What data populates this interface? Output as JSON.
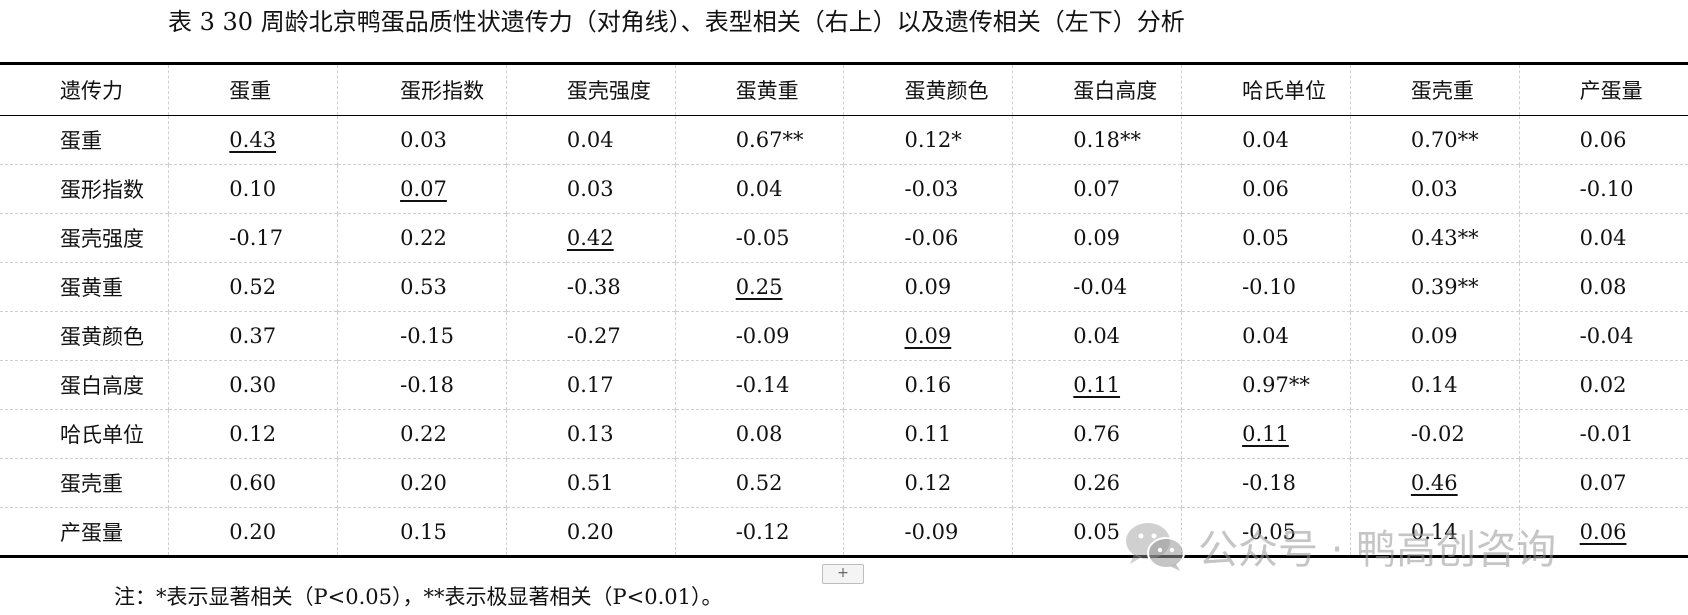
{
  "title": "表 3 30 周龄北京鸭蛋品质性状遗传力（对角线）、表型相关（右上）以及遗传相关（左下）分析",
  "table": {
    "header": [
      "遗传力",
      "蛋重",
      "蛋形指数",
      "蛋壳强度",
      "蛋黄重",
      "蛋黄颜色",
      "蛋白高度",
      "哈氏单位",
      "蛋壳重",
      "产蛋量"
    ],
    "rows": [
      {
        "label": "蛋重",
        "cells": [
          "0.43",
          "0.03",
          "0.04",
          "0.67**",
          "0.12*",
          "0.18**",
          "0.04",
          "0.70**",
          "0.06"
        ]
      },
      {
        "label": "蛋形指数",
        "cells": [
          "0.10",
          "0.07",
          "0.03",
          "0.04",
          "-0.03",
          "0.07",
          "0.06",
          "0.03",
          "-0.10"
        ]
      },
      {
        "label": "蛋壳强度",
        "cells": [
          "-0.17",
          "0.22",
          "0.42",
          "-0.05",
          "-0.06",
          "0.09",
          "0.05",
          "0.43**",
          "0.04"
        ]
      },
      {
        "label": "蛋黄重",
        "cells": [
          "0.52",
          "0.53",
          "-0.38",
          "0.25",
          "0.09",
          "-0.04",
          "-0.10",
          "0.39**",
          "0.08"
        ]
      },
      {
        "label": "蛋黄颜色",
        "cells": [
          "0.37",
          "-0.15",
          "-0.27",
          "-0.09",
          "0.09",
          "0.04",
          "0.04",
          "0.09",
          "-0.04"
        ]
      },
      {
        "label": "蛋白高度",
        "cells": [
          "0.30",
          "-0.18",
          "0.17",
          "-0.14",
          "0.16",
          "0.11",
          "0.97**",
          "0.14",
          "0.02"
        ]
      },
      {
        "label": "哈氏单位",
        "cells": [
          "0.12",
          "0.22",
          "0.13",
          "0.08",
          "0.11",
          "0.76",
          "0.11",
          "-0.02",
          "-0.01"
        ]
      },
      {
        "label": "蛋壳重",
        "cells": [
          "0.60",
          "0.20",
          "0.51",
          "0.52",
          "0.12",
          "0.26",
          "-0.18",
          "0.46",
          "0.07"
        ]
      },
      {
        "label": "产蛋量",
        "cells": [
          "0.20",
          "0.15",
          "0.20",
          "-0.12",
          "-0.09",
          "0.05",
          "-0.05",
          "0.14",
          "0.06"
        ]
      }
    ]
  },
  "add_button": "+",
  "note": "注：*表示显著相关（P<0.05），**表示极显著相关（P<0.01）。",
  "watermark": {
    "text": "公众号 · 鸭高创咨询",
    "icon": "wechat-icon"
  }
}
